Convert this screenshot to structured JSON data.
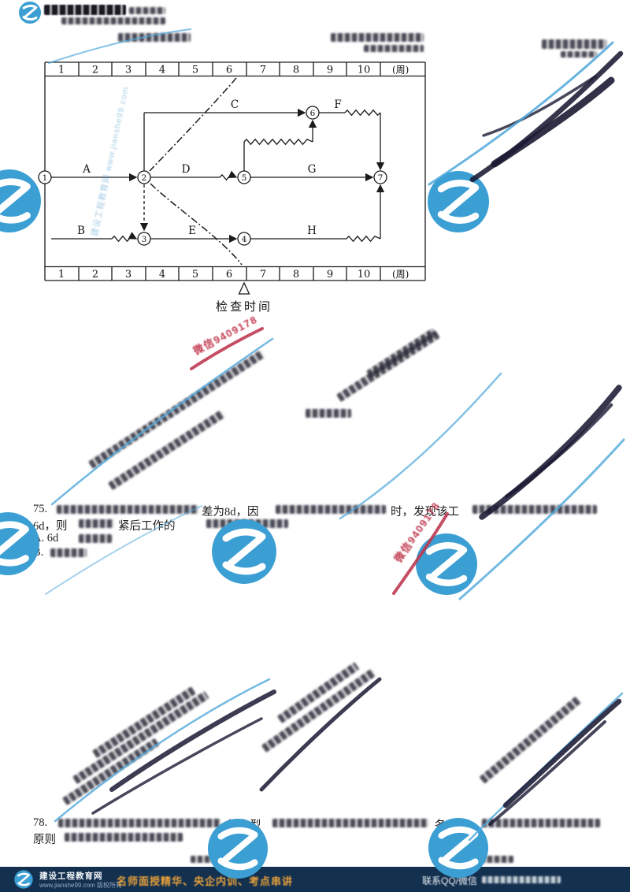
{
  "watermark": {
    "wechat_text": "微信9409178",
    "site_text": "建设工程教育网 www.jianshe99.com"
  },
  "diagram": {
    "unit": "(周)",
    "scale": [
      "1",
      "2",
      "3",
      "4",
      "5",
      "6",
      "7",
      "8",
      "9",
      "10"
    ],
    "nodes": [
      "1",
      "2",
      "3",
      "4",
      "5",
      "6",
      "7"
    ],
    "activities": {
      "A": "A",
      "B": "B",
      "C": "C",
      "D": "D",
      "E": "E",
      "F": "F",
      "G": "G",
      "H": "H"
    },
    "check_time_label": "检查时间"
  },
  "questions": {
    "q75": {
      "number": "75.",
      "line1_frag1": "差为8d，因",
      "line1_frag2": "时，发现该工",
      "line2_frag1": "6d，则",
      "line2_frag2": "紧后工作的",
      "option_a": "A. 6d",
      "option_b": "B."
    },
    "q78": {
      "number": "78.",
      "line1_frag1": "的大型",
      "line1_frag2": "各项工",
      "line2_frag1": "原则"
    }
  },
  "footer": {
    "brand": "建设工程教育网",
    "copyright": "www.jianshe99.com 版权所有",
    "promo": "名师面授精华、央企内训、考点串讲",
    "contact": "联系QQ/微信"
  },
  "colors": {
    "logo_blue": "#3b9fd4",
    "footer_bg": "#14304f",
    "promo_orange": "#e9a23b",
    "watermark_red": "#c23a50"
  }
}
